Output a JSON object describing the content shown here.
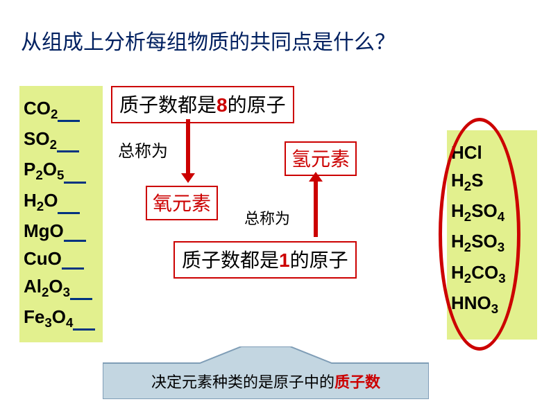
{
  "title": "从组成上分析每组物质的共同点是什么？",
  "colors": {
    "title": "#002060",
    "highlight_bg": "#e2f08e",
    "accent": "#cc0000",
    "underline": "#003380",
    "banner_fill": "#c3d6e1",
    "banner_stroke": "#7f9db6"
  },
  "left_formulas": [
    {
      "pre": "CO",
      "sub": "2",
      "post": ""
    },
    {
      "pre": "SO",
      "sub": "2",
      "post": ""
    },
    {
      "pre": "P",
      "sub": "2",
      "post": "O",
      "sub2": "5"
    },
    {
      "pre": "H",
      "sub": "2",
      "post": "O"
    },
    {
      "pre": "MgO",
      "sub": "",
      "post": ""
    },
    {
      "pre": "CuO",
      "sub": "",
      "post": ""
    },
    {
      "pre": "Al",
      "sub": "2",
      "post": "O",
      "sub2": "3"
    },
    {
      "pre": "Fe",
      "sub": "3",
      "post": "O",
      "sub2": "4"
    }
  ],
  "right_formulas": [
    {
      "pre": "HCl",
      "sub": "",
      "post": ""
    },
    {
      "pre": "H",
      "sub": "2",
      "post": "S"
    },
    {
      "pre": "H",
      "sub": "2",
      "post": "SO",
      "sub2": "4"
    },
    {
      "pre": "H",
      "sub": "2",
      "post": "SO",
      "sub2": "3"
    },
    {
      "pre": "H",
      "sub": "2",
      "post": "CO",
      "sub2": "3"
    },
    {
      "pre": "HNO",
      "sub": "3",
      "post": ""
    }
  ],
  "box8_pre": "质子数都是",
  "box8_num": "8",
  "box8_post": "的原子",
  "box1_pre": "质子数都是",
  "box1_num": "1",
  "box1_post": "的原子",
  "called": "总称为",
  "oxygen": "氧元素",
  "hydrogen": "氢元素",
  "banner_pre": "决定元素种类的是原子中的",
  "banner_red": "质子数"
}
